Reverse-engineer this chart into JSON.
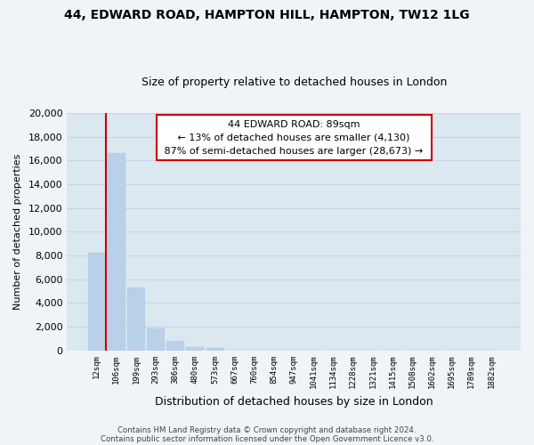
{
  "title": "44, EDWARD ROAD, HAMPTON HILL, HAMPTON, TW12 1LG",
  "subtitle": "Size of property relative to detached houses in London",
  "xlabel": "Distribution of detached houses by size in London",
  "ylabel": "Number of detached properties",
  "categories": [
    "12sqm",
    "106sqm",
    "199sqm",
    "293sqm",
    "386sqm",
    "480sqm",
    "573sqm",
    "667sqm",
    "760sqm",
    "854sqm",
    "947sqm",
    "1041sqm",
    "1134sqm",
    "1228sqm",
    "1321sqm",
    "1415sqm",
    "1508sqm",
    "1602sqm",
    "1695sqm",
    "1789sqm",
    "1882sqm"
  ],
  "values": [
    8200,
    16600,
    5300,
    1850,
    780,
    300,
    200,
    0,
    0,
    0,
    0,
    0,
    0,
    0,
    0,
    0,
    0,
    0,
    0,
    0,
    0
  ],
  "bar_color": "#b8d0e8",
  "bar_edge_color": "#b8d0e8",
  "annotation_title": "44 EDWARD ROAD: 89sqm",
  "annotation_line1": "← 13% of detached houses are smaller (4,130)",
  "annotation_line2": "87% of semi-detached houses are larger (28,673) →",
  "annotation_box_facecolor": "#ffffff",
  "annotation_box_edgecolor": "#cc0000",
  "red_line_color": "#cc0000",
  "ylim": [
    0,
    20000
  ],
  "yticks": [
    0,
    2000,
    4000,
    6000,
    8000,
    10000,
    12000,
    14000,
    16000,
    18000,
    20000
  ],
  "grid_color": "#c8d4e4",
  "plot_bg_color": "#dce8f0",
  "fig_bg_color": "#f0f4f8",
  "title_fontsize": 10,
  "subtitle_fontsize": 9,
  "xlabel_fontsize": 9,
  "ylabel_fontsize": 8,
  "footer1": "Contains HM Land Registry data © Crown copyright and database right 2024.",
  "footer2": "Contains public sector information licensed under the Open Government Licence v3.0."
}
